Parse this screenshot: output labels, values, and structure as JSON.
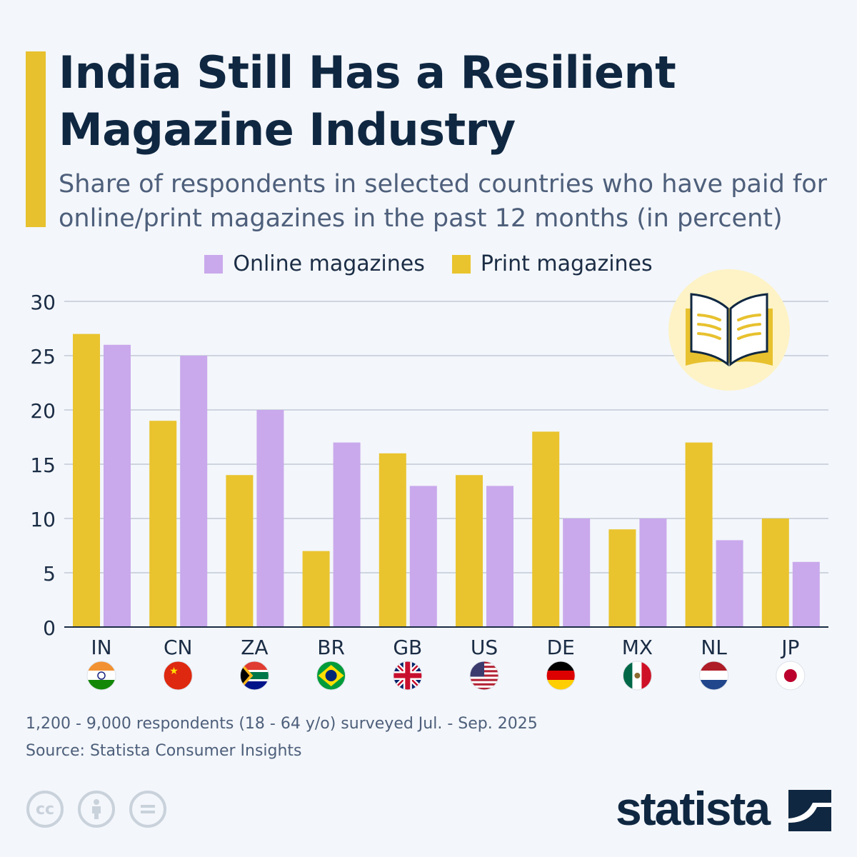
{
  "header": {
    "title": "India Still Has a Resilient Magazine Industry",
    "subtitle": "Share of respondents in selected countries who have paid for online/print magazines in the past 12 months (in percent)"
  },
  "colors": {
    "accent": "#e8c22e",
    "print": "#e9c42f",
    "online": "#c9a9ec",
    "title": "#0f2741"
  },
  "chart_data": {
    "type": "bar",
    "categories": [
      "IN",
      "CN",
      "ZA",
      "BR",
      "GB",
      "US",
      "DE",
      "MX",
      "NL",
      "JP"
    ],
    "flags": [
      "flag-india-icon",
      "flag-china-icon",
      "flag-south-africa-icon",
      "flag-brazil-icon",
      "flag-uk-icon",
      "flag-us-icon",
      "flag-germany-icon",
      "flag-mexico-icon",
      "flag-netherlands-icon",
      "flag-japan-icon"
    ],
    "series": [
      {
        "name": "Print magazines",
        "color": "#e9c42f",
        "values": [
          27,
          19,
          14,
          7,
          16,
          14,
          18,
          9,
          17,
          10
        ]
      },
      {
        "name": "Online magazines",
        "color": "#c9a9ec",
        "values": [
          26,
          25,
          20,
          17,
          13,
          13,
          10,
          10,
          8,
          6
        ]
      }
    ],
    "legend_order": [
      "Online magazines",
      "Print magazines"
    ],
    "legend_position": "top",
    "ylim": [
      0,
      30
    ],
    "yticks": [
      0,
      5,
      10,
      15,
      20,
      25,
      30
    ],
    "grid": true,
    "xlabel": "",
    "ylabel": ""
  },
  "decor_icon": "open-book-icon",
  "footer": {
    "note": "1,200 - 9,000 respondents (18 - 64 y/o) surveyed Jul. - Sep. 2025",
    "source": "Source: Statista Consumer Insights",
    "license_icons": [
      "cc-icon",
      "attribution-icon",
      "no-derivatives-icon"
    ],
    "logo": "statista"
  }
}
